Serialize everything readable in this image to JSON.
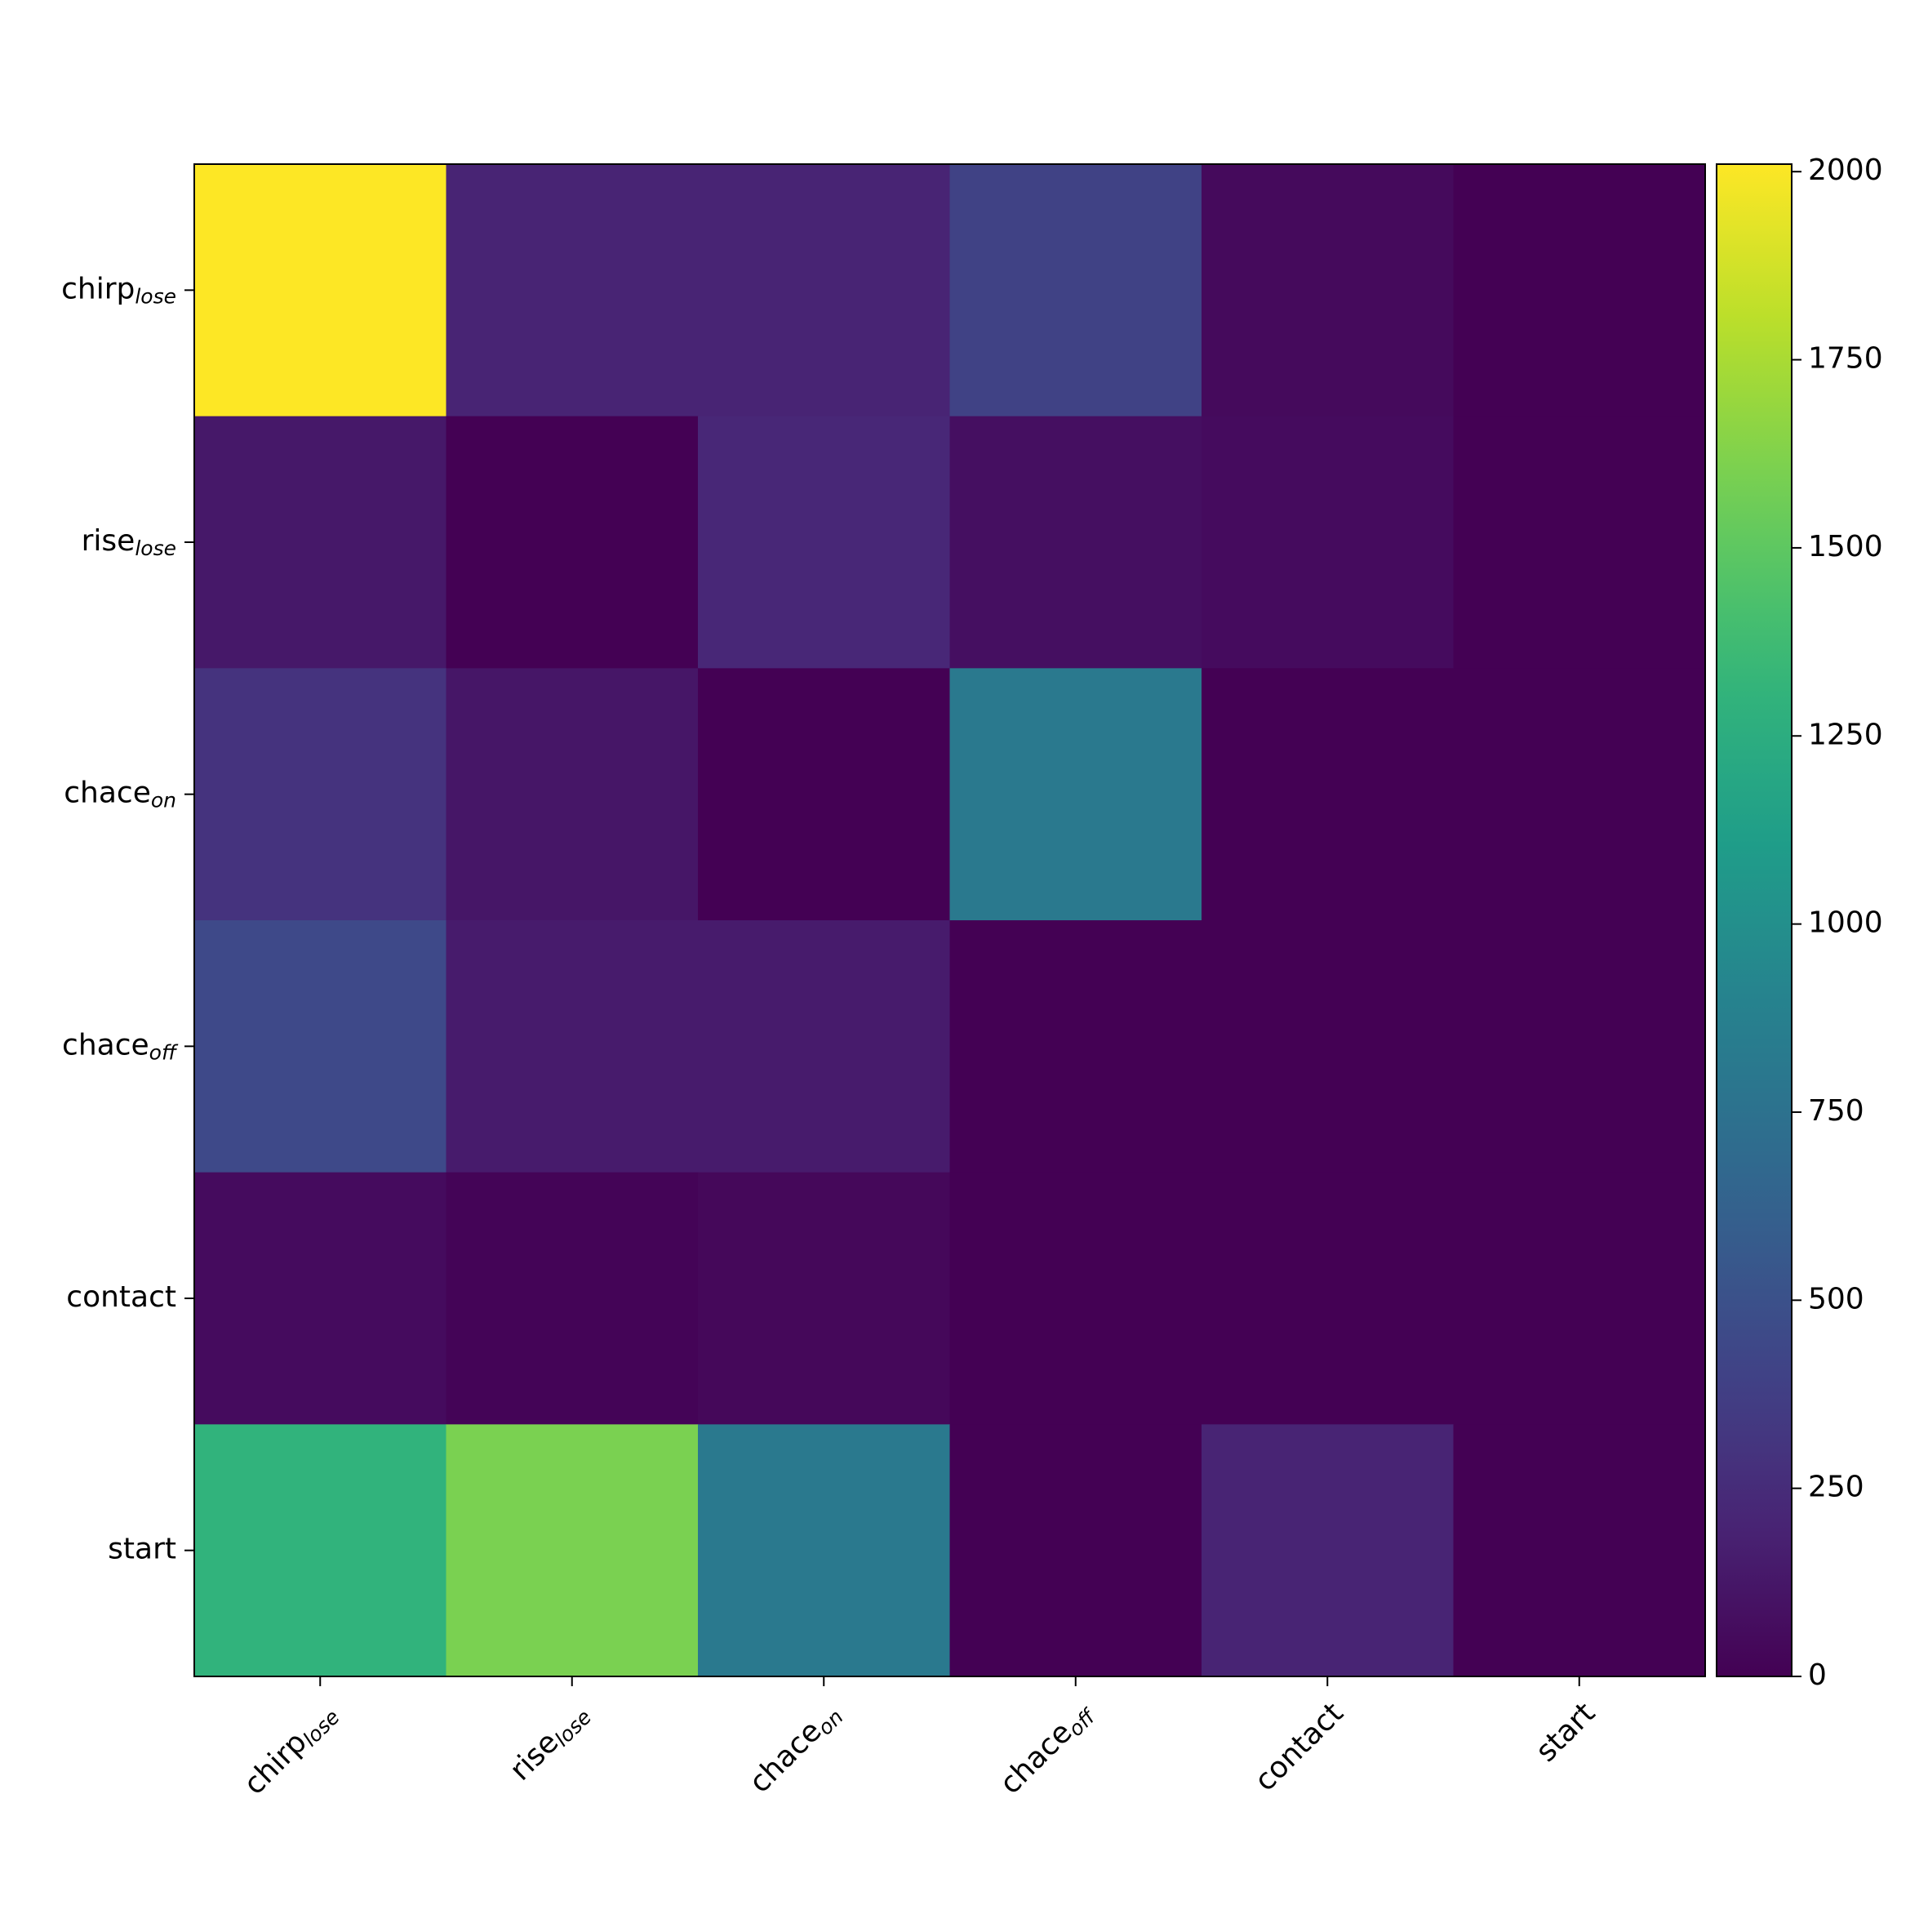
{
  "chart_data": {
    "type": "heatmap",
    "colormap": "viridis",
    "categories": [
      {
        "base": "chirp",
        "sub": "lose"
      },
      {
        "base": "rise",
        "sub": "lose"
      },
      {
        "base": "chace",
        "sub": "on"
      },
      {
        "base": "chace",
        "sub": "off"
      },
      {
        "base": "contact"
      },
      {
        "base": "start"
      }
    ],
    "values": [
      [
        2010,
        200,
        200,
        400,
        50,
        0
      ],
      [
        130,
        0,
        220,
        80,
        60,
        0
      ],
      [
        300,
        120,
        0,
        820,
        0,
        0
      ],
      [
        450,
        150,
        150,
        0,
        0,
        0
      ],
      [
        60,
        20,
        40,
        0,
        0,
        0
      ],
      [
        1300,
        1600,
        820,
        0,
        200,
        0
      ]
    ],
    "colorbar_lim": [
      0,
      2010
    ],
    "colorbar_ticks": [
      0,
      250,
      500,
      750,
      1000,
      1250,
      1500,
      1750,
      2000
    ]
  }
}
